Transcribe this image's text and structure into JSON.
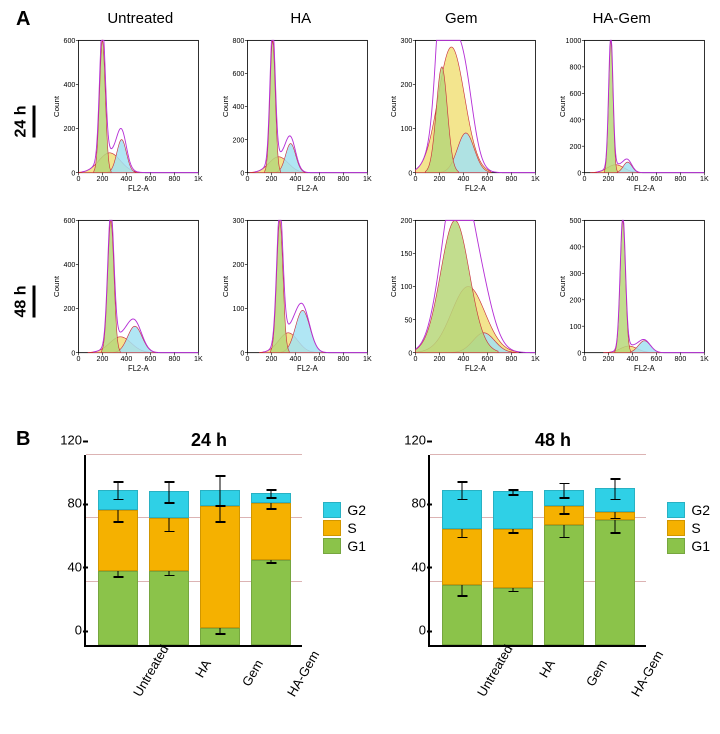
{
  "panelA": {
    "label": "A",
    "columns": [
      "Untreated",
      "HA",
      "Gem",
      "HA-Gem"
    ],
    "rows": [
      "24 h",
      "48 h"
    ],
    "x_axis_label": "FL2-A",
    "y_axis_label": "Count",
    "x_ticks": [
      0,
      200,
      400,
      600,
      800,
      "1K"
    ],
    "colors": {
      "g1_fill": "#b7d77a",
      "s_fill": "#f1e07a",
      "g2_fill": "#a2e2f2",
      "outline_fit": "#c92a3a",
      "outline_raw": "#b52fd6",
      "raw_line": "#333333"
    },
    "cells": [
      [
        {
          "ymax": 600,
          "yticks": [
            0,
            200,
            400,
            600
          ],
          "g1": {
            "c": 200,
            "h": 1.0,
            "w": 24
          },
          "s": {
            "c": 260,
            "h": 0.15,
            "w": 90
          },
          "g2": {
            "c": 360,
            "h": 0.25,
            "w": 40
          }
        },
        {
          "ymax": 800,
          "yticks": [
            0,
            200,
            400,
            600,
            800
          ],
          "g1": {
            "c": 210,
            "h": 1.0,
            "w": 22
          },
          "s": {
            "c": 260,
            "h": 0.12,
            "w": 80
          },
          "g2": {
            "c": 360,
            "h": 0.22,
            "w": 42
          }
        },
        {
          "ymax": 300,
          "yticks": [
            0,
            100,
            200,
            300
          ],
          "g1": {
            "c": 220,
            "h": 0.8,
            "w": 46
          },
          "s": {
            "c": 300,
            "h": 0.95,
            "w": 110
          },
          "g2": {
            "c": 420,
            "h": 0.3,
            "w": 70
          }
        },
        {
          "ymax": 1000,
          "yticks": [
            0,
            200,
            400,
            600,
            800,
            1000
          ],
          "g1": {
            "c": 220,
            "h": 1.0,
            "w": 18
          },
          "s": {
            "c": 260,
            "h": 0.06,
            "w": 70
          },
          "g2": {
            "c": 360,
            "h": 0.08,
            "w": 36
          }
        }
      ],
      [
        {
          "ymax": 600,
          "yticks": [
            0,
            200,
            400,
            600
          ],
          "g1": {
            "c": 270,
            "h": 1.0,
            "w": 26
          },
          "s": {
            "c": 350,
            "h": 0.12,
            "w": 90
          },
          "g2": {
            "c": 470,
            "h": 0.2,
            "w": 60
          }
        },
        {
          "ymax": 300,
          "yticks": [
            0,
            100,
            200,
            300
          ],
          "g1": {
            "c": 270,
            "h": 1.0,
            "w": 26
          },
          "s": {
            "c": 340,
            "h": 0.15,
            "w": 80
          },
          "g2": {
            "c": 460,
            "h": 0.32,
            "w": 60
          }
        },
        {
          "ymax": 200,
          "yticks": [
            0,
            50,
            100,
            150,
            200
          ],
          "g1": {
            "c": 330,
            "h": 1.0,
            "w": 120
          },
          "s": {
            "c": 440,
            "h": 0.5,
            "w": 140
          },
          "g2": {
            "c": 570,
            "h": 0.15,
            "w": 90
          }
        },
        {
          "ymax": 500,
          "yticks": [
            0,
            100,
            200,
            300,
            400,
            500
          ],
          "g1": {
            "c": 320,
            "h": 1.0,
            "w": 22
          },
          "s": {
            "c": 370,
            "h": 0.05,
            "w": 70
          },
          "g2": {
            "c": 500,
            "h": 0.09,
            "w": 50
          }
        }
      ]
    ]
  },
  "panelB": {
    "label": "B",
    "plots": [
      {
        "title": "24 h",
        "ymax": 120,
        "ytick_step": 40,
        "categories": [
          "Untreated",
          "HA",
          "Gem",
          "HA-Gem"
        ],
        "bars": [
          {
            "G1": 47,
            "S": 38,
            "G2": 13,
            "err": {
              "G1": 4,
              "S": 7,
              "G2": 6
            }
          },
          {
            "G1": 47,
            "S": 33,
            "G2": 17,
            "err": {
              "G1": 3,
              "S": 8,
              "G2": 7
            }
          },
          {
            "G1": 11,
            "S": 77,
            "G2": 10,
            "err": {
              "G1": 4,
              "S": 10,
              "G2": 10
            }
          },
          {
            "G1": 54,
            "S": 36,
            "G2": 6,
            "err": {
              "G1": 2,
              "S": 4,
              "G2": 3
            }
          }
        ]
      },
      {
        "title": "48 h",
        "ymax": 120,
        "ytick_step": 40,
        "categories": [
          "Untreated",
          "HA",
          "Gem",
          "HA-Gem"
        ],
        "bars": [
          {
            "G1": 38,
            "S": 35,
            "G2": 25,
            "err": {
              "G1": 7,
              "S": 5,
              "G2": 6
            }
          },
          {
            "G1": 36,
            "S": 37,
            "G2": 24,
            "err": {
              "G1": 2,
              "S": 2,
              "G2": 2
            }
          },
          {
            "G1": 76,
            "S": 12,
            "G2": 10,
            "err": {
              "G1": 8,
              "S": 5,
              "G2": 5
            }
          },
          {
            "G1": 79,
            "S": 5,
            "G2": 15,
            "err": {
              "G1": 8,
              "S": 4,
              "G2": 7
            }
          }
        ]
      }
    ],
    "legend": [
      {
        "label": "G2",
        "class": "g2",
        "color": "#2fd0e6"
      },
      {
        "label": "S",
        "class": "s",
        "color": "#f5b100"
      },
      {
        "label": "G1",
        "class": "g1",
        "color": "#8bc34a"
      }
    ],
    "grid_color": "#dcb3b3"
  }
}
